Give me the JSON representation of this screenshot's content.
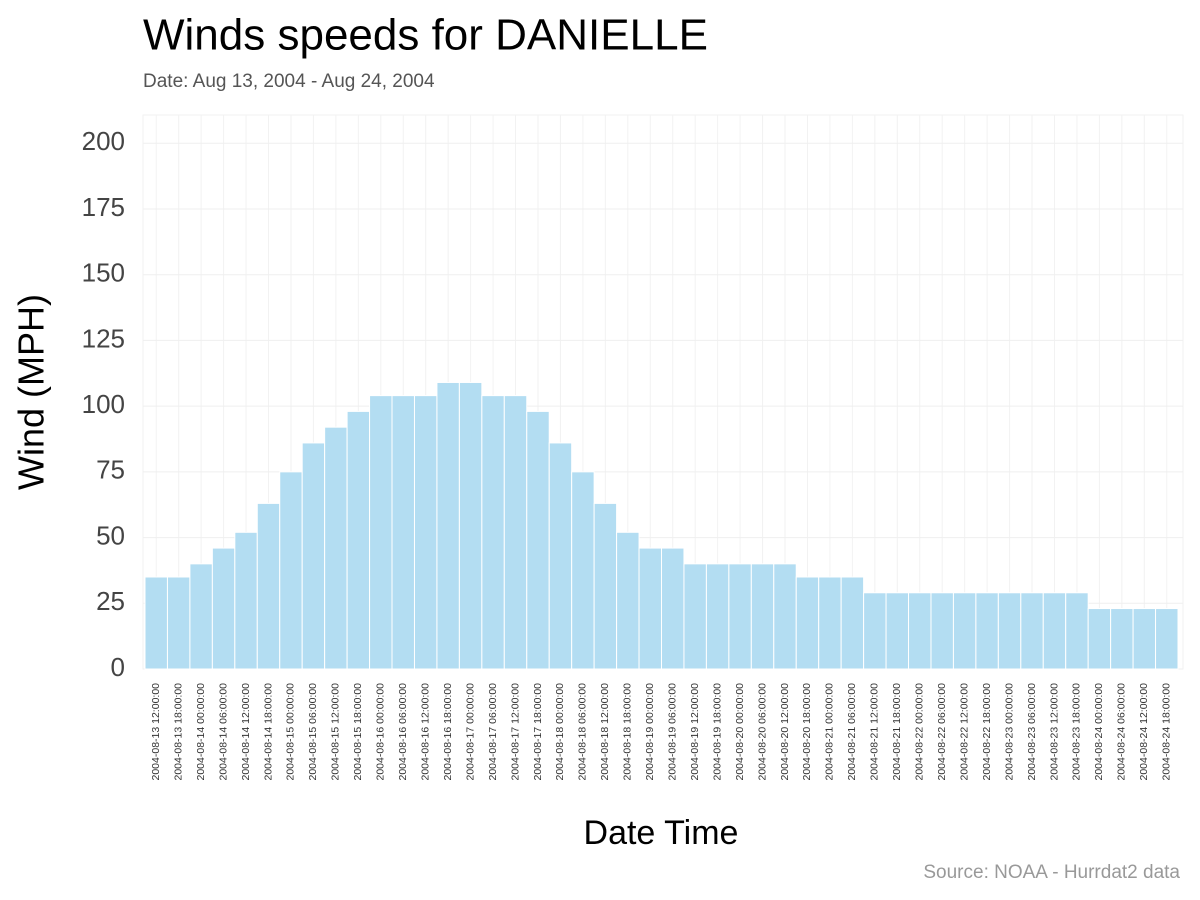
{
  "chart_data": {
    "type": "bar",
    "title": "Winds speeds for DANIELLE",
    "subtitle": "Date:  Aug 13, 2004 - Aug 24, 2004",
    "x_label": "Date Time",
    "y_label": "Wind (MPH)",
    "caption": "Source: NOAA - Hurrdat2 data",
    "categories": [
      "2004-08-13 12:00:00",
      "2004-08-13 18:00:00",
      "2004-08-14 00:00:00",
      "2004-08-14 06:00:00",
      "2004-08-14 12:00:00",
      "2004-08-14 18:00:00",
      "2004-08-15 00:00:00",
      "2004-08-15 06:00:00",
      "2004-08-15 12:00:00",
      "2004-08-15 18:00:00",
      "2004-08-16 00:00:00",
      "2004-08-16 06:00:00",
      "2004-08-16 12:00:00",
      "2004-08-16 18:00:00",
      "2004-08-17 00:00:00",
      "2004-08-17 06:00:00",
      "2004-08-17 12:00:00",
      "2004-08-17 18:00:00",
      "2004-08-18 00:00:00",
      "2004-08-18 06:00:00",
      "2004-08-18 12:00:00",
      "2004-08-18 18:00:00",
      "2004-08-19 00:00:00",
      "2004-08-19 06:00:00",
      "2004-08-19 12:00:00",
      "2004-08-19 18:00:00",
      "2004-08-20 00:00:00",
      "2004-08-20 06:00:00",
      "2004-08-20 12:00:00",
      "2004-08-20 18:00:00",
      "2004-08-21 00:00:00",
      "2004-08-21 06:00:00",
      "2004-08-21 12:00:00",
      "2004-08-21 18:00:00",
      "2004-08-22 00:00:00",
      "2004-08-22 06:00:00",
      "2004-08-22 12:00:00",
      "2004-08-22 18:00:00",
      "2004-08-23 00:00:00",
      "2004-08-23 06:00:00",
      "2004-08-23 12:00:00",
      "2004-08-23 18:00:00",
      "2004-08-24 00:00:00",
      "2004-08-24 06:00:00",
      "2004-08-24 12:00:00",
      "2004-08-24 18:00:00"
    ],
    "values": [
      35,
      35,
      40,
      46,
      52,
      63,
      75,
      86,
      92,
      98,
      104,
      104,
      104,
      109,
      109,
      104,
      104,
      98,
      86,
      75,
      63,
      52,
      46,
      46,
      40,
      40,
      40,
      40,
      40,
      35,
      35,
      35,
      29,
      29,
      29,
      29,
      29,
      29,
      29,
      29,
      29,
      29,
      23,
      23,
      23,
      23
    ],
    "color": "#b3ddf2",
    "ylim": [
      0,
      210
    ],
    "yticks": [
      0,
      25,
      50,
      75,
      100,
      125,
      150,
      175,
      200
    ],
    "grid": true
  }
}
